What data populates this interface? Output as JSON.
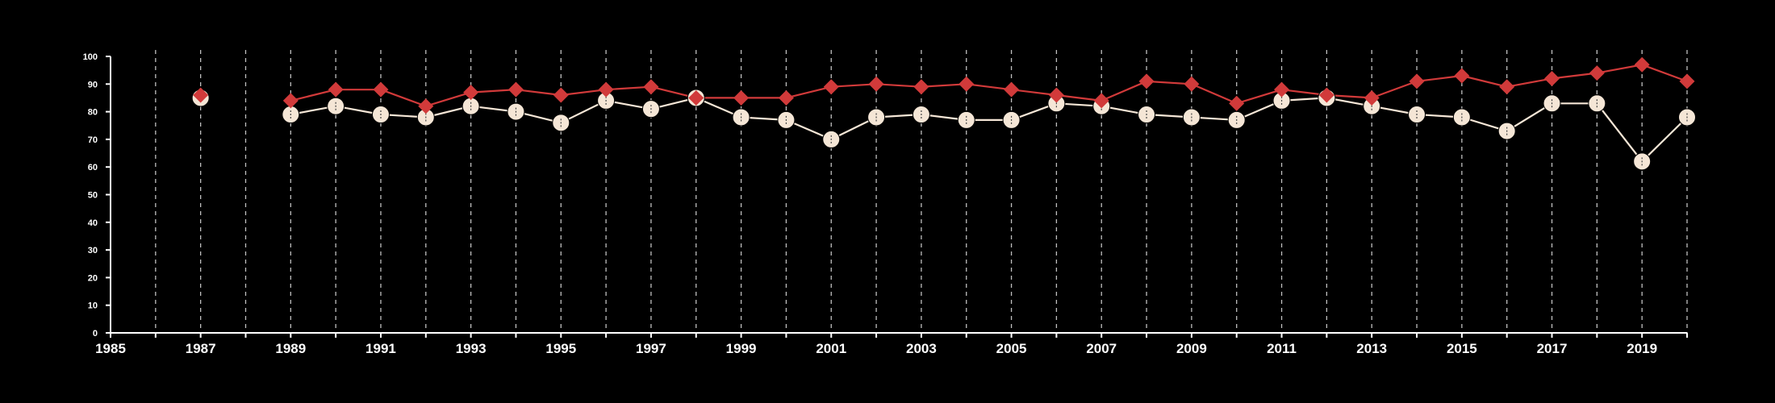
{
  "chart_data": {
    "type": "line",
    "title": "",
    "xlabel": "",
    "ylabel": "",
    "xlim": [
      1985,
      2020
    ],
    "ylim": [
      0,
      100
    ],
    "x_ticks": [
      1985,
      1987,
      1989,
      1991,
      1993,
      1995,
      1997,
      1999,
      2001,
      2003,
      2005,
      2007,
      2009,
      2011,
      2013,
      2015,
      2017,
      2019
    ],
    "y_ticks": [
      0,
      10,
      20,
      30,
      40,
      50,
      60,
      70,
      80,
      90,
      100
    ],
    "x_tick_labels": [
      "1985",
      "1987",
      "1989",
      "1991",
      "1993",
      "1995",
      "1997",
      "1999",
      "2001",
      "2003",
      "2005",
      "2007",
      "2009",
      "2011",
      "2013",
      "2015",
      "2017",
      "2019"
    ],
    "y_tick_labels": [
      "0",
      "10",
      "20",
      "30",
      "40",
      "50",
      "60",
      "70",
      "80",
      "90",
      "100"
    ],
    "grid": "vertical-dashed",
    "series": [
      {
        "color": "#f5e6d6",
        "marker": "circle",
        "points": [
          [
            1987,
            85
          ],
          [
            1989,
            79
          ],
          [
            1990,
            82
          ],
          [
            1991,
            79
          ],
          [
            1992,
            78
          ],
          [
            1993,
            82
          ],
          [
            1994,
            80
          ],
          [
            1995,
            76
          ],
          [
            1996,
            84
          ],
          [
            1997,
            81
          ],
          [
            1998,
            85
          ],
          [
            1999,
            78
          ],
          [
            2000,
            77
          ],
          [
            2001,
            70
          ],
          [
            2002,
            78
          ],
          [
            2003,
            79
          ],
          [
            2004,
            77
          ],
          [
            2005,
            77
          ],
          [
            2006,
            83
          ],
          [
            2007,
            82
          ],
          [
            2008,
            79
          ],
          [
            2009,
            78
          ],
          [
            2010,
            77
          ],
          [
            2011,
            84
          ],
          [
            2012,
            85
          ],
          [
            2013,
            82
          ],
          [
            2014,
            79
          ],
          [
            2015,
            78
          ],
          [
            2016,
            73
          ],
          [
            2017,
            83
          ],
          [
            2018,
            83
          ],
          [
            2019,
            62
          ],
          [
            2020,
            78
          ]
        ]
      },
      {
        "color": "#d13a3a",
        "marker": "diamond",
        "points": [
          [
            1987,
            86
          ],
          [
            1989,
            84
          ],
          [
            1990,
            88
          ],
          [
            1991,
            88
          ],
          [
            1992,
            82
          ],
          [
            1993,
            87
          ],
          [
            1994,
            88
          ],
          [
            1995,
            86
          ],
          [
            1996,
            88
          ],
          [
            1997,
            89
          ],
          [
            1998,
            85
          ],
          [
            1999,
            85
          ],
          [
            2000,
            85
          ],
          [
            2001,
            89
          ],
          [
            2002,
            90
          ],
          [
            2003,
            89
          ],
          [
            2004,
            90
          ],
          [
            2005,
            88
          ],
          [
            2006,
            86
          ],
          [
            2007,
            84
          ],
          [
            2008,
            91
          ],
          [
            2009,
            90
          ],
          [
            2010,
            83
          ],
          [
            2011,
            88
          ],
          [
            2012,
            86
          ],
          [
            2013,
            85
          ],
          [
            2014,
            91
          ],
          [
            2015,
            93
          ],
          [
            2016,
            89
          ],
          [
            2017,
            92
          ],
          [
            2018,
            94
          ],
          [
            2019,
            97
          ],
          [
            2020,
            91
          ]
        ]
      }
    ],
    "colors": {
      "background": "#000000",
      "axis": "#ffffff",
      "grid": "#bfbfbf"
    }
  }
}
